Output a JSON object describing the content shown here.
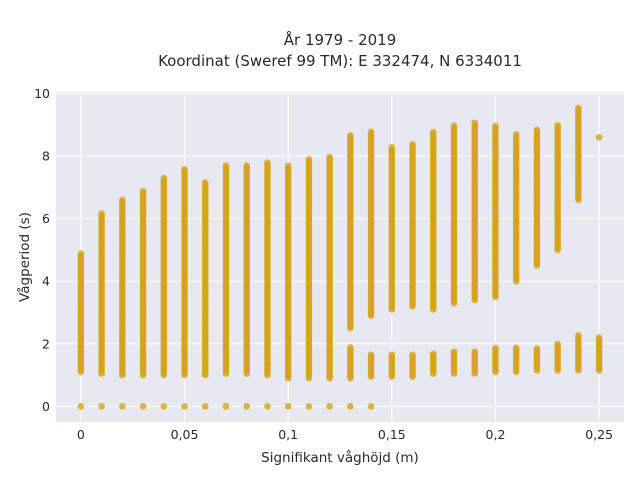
{
  "chart_data": {
    "type": "scatter",
    "title": [
      "År 1979 - 2019",
      "Koordinat (Sweref 99 TM): E 332474, N 6334011"
    ],
    "xlabel": "Signifikant våghöjd (m)",
    "ylabel": "Vågperiod (s)",
    "xlim": [
      -0.012,
      0.262
    ],
    "ylim": [
      -0.5,
      10.05
    ],
    "xticks": [
      0,
      0.05,
      0.1,
      0.15,
      0.2,
      0.25
    ],
    "xtick_labels": [
      "0",
      "0,05",
      "0,1",
      "0,15",
      "0,2",
      "0,25"
    ],
    "yticks": [
      0,
      2,
      4,
      6,
      8,
      10
    ],
    "ytick_labels": [
      "0",
      "2",
      "4",
      "6",
      "8",
      "10"
    ],
    "grid": true,
    "colors": {
      "marker": "#d4a21c",
      "plot_bg": "#e8e8f0",
      "grid": "#ffffff"
    },
    "series": [
      {
        "x": [
          0,
          0.01,
          0.02,
          0.03,
          0.04,
          0.05,
          0.06,
          0.07,
          0.08,
          0.09,
          0.1,
          0.11,
          0.12,
          0.13,
          0.14,
          0.15,
          0.16,
          0.17,
          0.18,
          0.19,
          0.2,
          0.21,
          0.22,
          0.23,
          0.24,
          0.25
        ],
        "lower_band": [
          [
            1.1,
            4.9
          ],
          [
            1.05,
            6.2
          ],
          [
            1.0,
            6.6
          ],
          [
            1.0,
            6.9
          ],
          [
            1.0,
            7.3
          ],
          [
            1.0,
            7.6
          ],
          [
            1.0,
            7.2
          ],
          [
            1.05,
            7.7
          ],
          [
            1.05,
            7.7
          ],
          [
            1.0,
            7.8
          ],
          [
            0.9,
            7.7
          ],
          [
            0.9,
            7.9
          ],
          [
            0.9,
            8.0
          ],
          [
            0.9,
            1.9
          ],
          [
            0.95,
            1.7
          ],
          [
            0.95,
            1.7
          ],
          [
            0.95,
            1.7
          ],
          [
            1.05,
            1.7
          ],
          [
            1.05,
            1.8
          ],
          [
            1.05,
            1.8
          ],
          [
            1.1,
            1.9
          ],
          [
            1.1,
            1.9
          ],
          [
            1.15,
            1.9
          ],
          [
            1.15,
            2.0
          ],
          [
            1.15,
            2.3
          ],
          [
            1.15,
            2.25
          ]
        ],
        "upper_band": [
          null,
          null,
          null,
          null,
          null,
          null,
          null,
          null,
          null,
          null,
          null,
          null,
          null,
          [
            2.5,
            8.7
          ],
          [
            2.9,
            8.8
          ],
          [
            3.1,
            8.3
          ],
          [
            3.2,
            8.4
          ],
          [
            3.1,
            8.8
          ],
          [
            3.3,
            9.0
          ],
          [
            3.4,
            9.1
          ],
          [
            3.5,
            9.0
          ],
          [
            4.0,
            8.7
          ],
          [
            4.5,
            8.9
          ],
          [
            5.0,
            9.0
          ],
          [
            6.6,
            9.55
          ],
          [
            8.6,
            8.6
          ]
        ],
        "zero_band": [
          0,
          0.01,
          0.02,
          0.03,
          0.04,
          0.05,
          0.06,
          0.07,
          0.08,
          0.09,
          0.1,
          0.11,
          0.12,
          0.13,
          0.14
        ]
      }
    ]
  }
}
